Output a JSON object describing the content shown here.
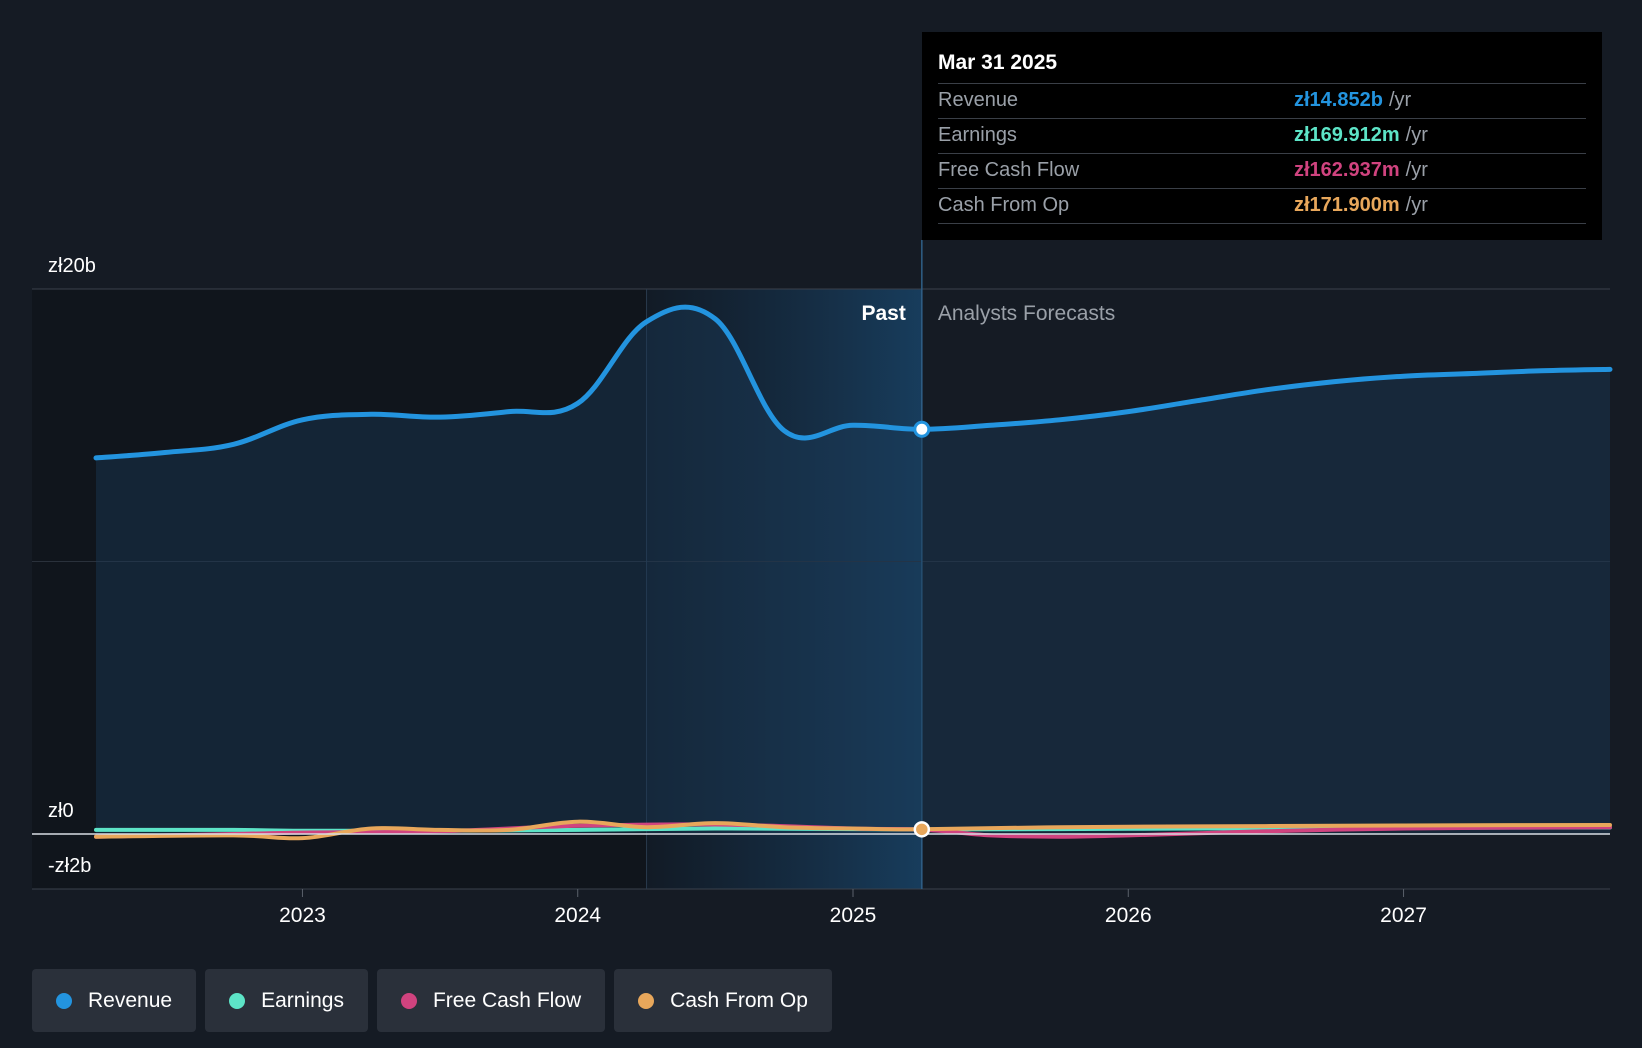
{
  "chart_data": {
    "type": "area",
    "y_ticks": [
      "zł20b",
      "zł0",
      "-zł2b"
    ],
    "ylim": [
      -2,
      20
    ],
    "x_ticks": [
      "2023",
      "2024",
      "2025",
      "2026",
      "2027"
    ],
    "x_tick_years": [
      2023,
      2024,
      2025,
      2026,
      2027
    ],
    "xlim": [
      2022.25,
      2027.75
    ],
    "past_label": "Past",
    "forecast_label": "Analysts Forecasts",
    "past_end": 2025.25,
    "highlight_start": 2024.25,
    "grid": true,
    "series": [
      {
        "name": "Revenue",
        "color": "#2394df",
        "points": [
          [
            2022.25,
            13.8
          ],
          [
            2022.5,
            14.0
          ],
          [
            2022.75,
            14.3
          ],
          [
            2023.0,
            15.2
          ],
          [
            2023.25,
            15.4
          ],
          [
            2023.5,
            15.3
          ],
          [
            2023.75,
            15.5
          ],
          [
            2024.0,
            15.8
          ],
          [
            2024.25,
            18.8
          ],
          [
            2024.5,
            18.9
          ],
          [
            2024.75,
            14.8
          ],
          [
            2025.0,
            15.0
          ],
          [
            2025.25,
            14.852
          ],
          [
            2025.5,
            15.0
          ],
          [
            2025.75,
            15.2
          ],
          [
            2026.0,
            15.5
          ],
          [
            2026.25,
            15.9
          ],
          [
            2026.5,
            16.3
          ],
          [
            2026.75,
            16.6
          ],
          [
            2027.0,
            16.8
          ],
          [
            2027.25,
            16.9
          ],
          [
            2027.5,
            17.0
          ],
          [
            2027.75,
            17.05
          ]
        ]
      },
      {
        "name": "Earnings",
        "color": "#5de4c7",
        "points": [
          [
            2022.25,
            0.15
          ],
          [
            2022.75,
            0.15
          ],
          [
            2023.0,
            0.12
          ],
          [
            2023.5,
            0.12
          ],
          [
            2024.0,
            0.15
          ],
          [
            2024.5,
            0.2
          ],
          [
            2025.0,
            0.18
          ],
          [
            2025.25,
            0.17
          ],
          [
            2025.75,
            0.18
          ],
          [
            2026.25,
            0.2
          ],
          [
            2026.75,
            0.22
          ],
          [
            2027.25,
            0.23
          ],
          [
            2027.75,
            0.24
          ]
        ]
      },
      {
        "name": "Free Cash Flow",
        "color": "#d0437f",
        "points": [
          [
            2022.25,
            -0.1
          ],
          [
            2022.75,
            0.0
          ],
          [
            2023.0,
            0.05
          ],
          [
            2023.5,
            0.1
          ],
          [
            2024.0,
            0.3
          ],
          [
            2024.5,
            0.35
          ],
          [
            2025.0,
            0.2
          ],
          [
            2025.25,
            0.163
          ],
          [
            2025.5,
            -0.05
          ],
          [
            2025.75,
            -0.1
          ],
          [
            2026.0,
            -0.05
          ],
          [
            2026.5,
            0.1
          ],
          [
            2027.0,
            0.2
          ],
          [
            2027.75,
            0.25
          ]
        ]
      },
      {
        "name": "Cash From Op",
        "color": "#e8a75b",
        "points": [
          [
            2022.25,
            -0.1
          ],
          [
            2022.75,
            -0.05
          ],
          [
            2023.0,
            -0.15
          ],
          [
            2023.25,
            0.2
          ],
          [
            2023.5,
            0.15
          ],
          [
            2023.75,
            0.15
          ],
          [
            2024.0,
            0.45
          ],
          [
            2024.25,
            0.25
          ],
          [
            2024.5,
            0.4
          ],
          [
            2024.75,
            0.25
          ],
          [
            2025.0,
            0.2
          ],
          [
            2025.25,
            0.172
          ],
          [
            2025.75,
            0.25
          ],
          [
            2026.25,
            0.28
          ],
          [
            2026.75,
            0.3
          ],
          [
            2027.25,
            0.32
          ],
          [
            2027.75,
            0.33
          ]
        ]
      }
    ]
  },
  "tooltip": {
    "date": "Mar 31 2025",
    "rows": [
      {
        "label": "Revenue",
        "value": "zł14.852b",
        "unit": "/yr",
        "color": "#2394df"
      },
      {
        "label": "Earnings",
        "value": "zł169.912m",
        "unit": "/yr",
        "color": "#5de4c7"
      },
      {
        "label": "Free Cash Flow",
        "value": "zł162.937m",
        "unit": "/yr",
        "color": "#d0437f"
      },
      {
        "label": "Cash From Op",
        "value": "zł171.900m",
        "unit": "/yr",
        "color": "#e8a75b"
      }
    ]
  },
  "legend": [
    {
      "label": "Revenue",
      "color": "#2394df"
    },
    {
      "label": "Earnings",
      "color": "#5de4c7"
    },
    {
      "label": "Free Cash Flow",
      "color": "#d0437f"
    },
    {
      "label": "Cash From Op",
      "color": "#e8a75b"
    }
  ]
}
